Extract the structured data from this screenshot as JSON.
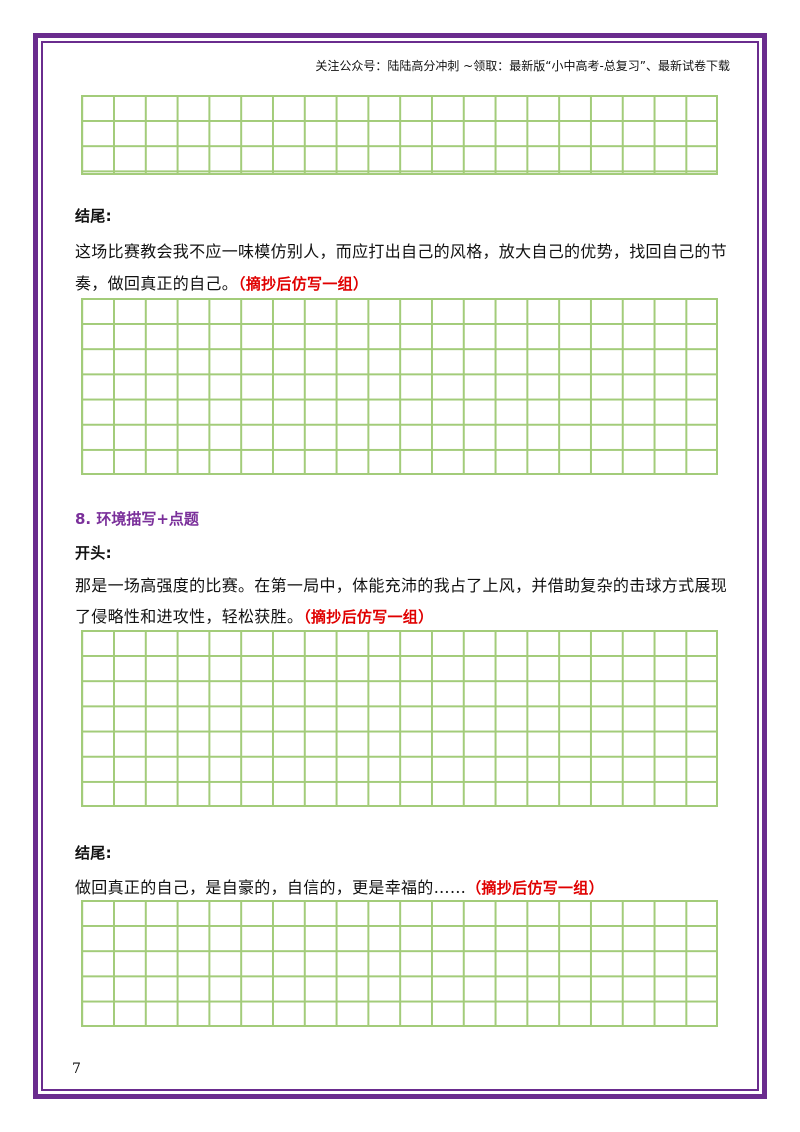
{
  "header": {
    "note": "关注公众号：陆陆高分冲刺 ~领取：最新版“小中高考-总复习”、最新试卷下载"
  },
  "blocks": {
    "ending1": {
      "label": "结尾:",
      "line1": "这场比赛教会我不应一味模仿别人，而应打出自己的风格，放大自己的优势，找回自己的节",
      "line2": "奏，做回真正的自己。",
      "note": "（摘抄后仿写一组）"
    },
    "section8": {
      "title": "8. 环境描写+点题"
    },
    "opening": {
      "label": "开头:",
      "line1": "那是一场高强度的比赛。在第一局中，体能充沛的我占了上风，并借助复杂的击球方式展现",
      "line2": "了侵略性和进攻性，轻松获胜。",
      "note": "（摘抄后仿写一组）"
    },
    "ending2": {
      "label": "结尾:",
      "line1": "做回真正的自己，是自豪的，自信的，更是幸福的……",
      "note": "（摘抄后仿写一组）"
    }
  },
  "footer": {
    "page_number": "7"
  },
  "colors": {
    "border": "#6a2c8e",
    "grid": "#a3cc7a",
    "emphasis": "#e00000",
    "section_title": "#7a2f9a"
  }
}
